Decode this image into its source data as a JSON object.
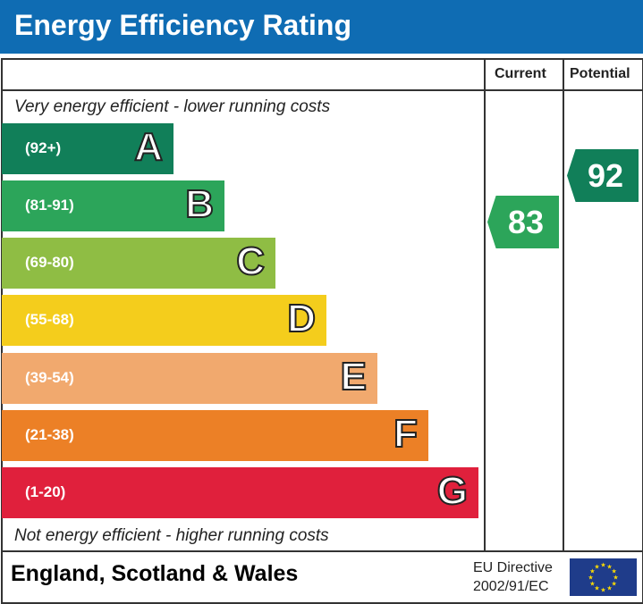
{
  "title": "Energy Efficiency Rating",
  "columns": {
    "current": "Current",
    "potential": "Potential"
  },
  "top_note": "Very energy efficient - lower running costs",
  "bottom_note": "Not energy efficient - higher running costs",
  "footer": {
    "region": "England, Scotland & Wales",
    "directive_line1": "EU Directive",
    "directive_line2": "2002/91/EC"
  },
  "chart_data": {
    "type": "bar",
    "title": "Energy Efficiency Rating",
    "categories": [
      "A",
      "B",
      "C",
      "D",
      "E",
      "F",
      "G"
    ],
    "bands": [
      {
        "letter": "A",
        "range": "(92+)",
        "color": "#117f59"
      },
      {
        "letter": "B",
        "range": "(81-91)",
        "color": "#2ca55a"
      },
      {
        "letter": "C",
        "range": "(69-80)",
        "color": "#8fbd44"
      },
      {
        "letter": "D",
        "range": "(55-68)",
        "color": "#f4cd1c"
      },
      {
        "letter": "E",
        "range": "(39-54)",
        "color": "#f1a96e"
      },
      {
        "letter": "F",
        "range": "(21-38)",
        "color": "#ec8026"
      },
      {
        "letter": "G",
        "range": "(1-20)",
        "color": "#e0203c"
      }
    ],
    "current": {
      "value": "83",
      "band": "B",
      "color": "#2ca55a"
    },
    "potential": {
      "value": "92",
      "band": "A",
      "color": "#117f59"
    }
  }
}
